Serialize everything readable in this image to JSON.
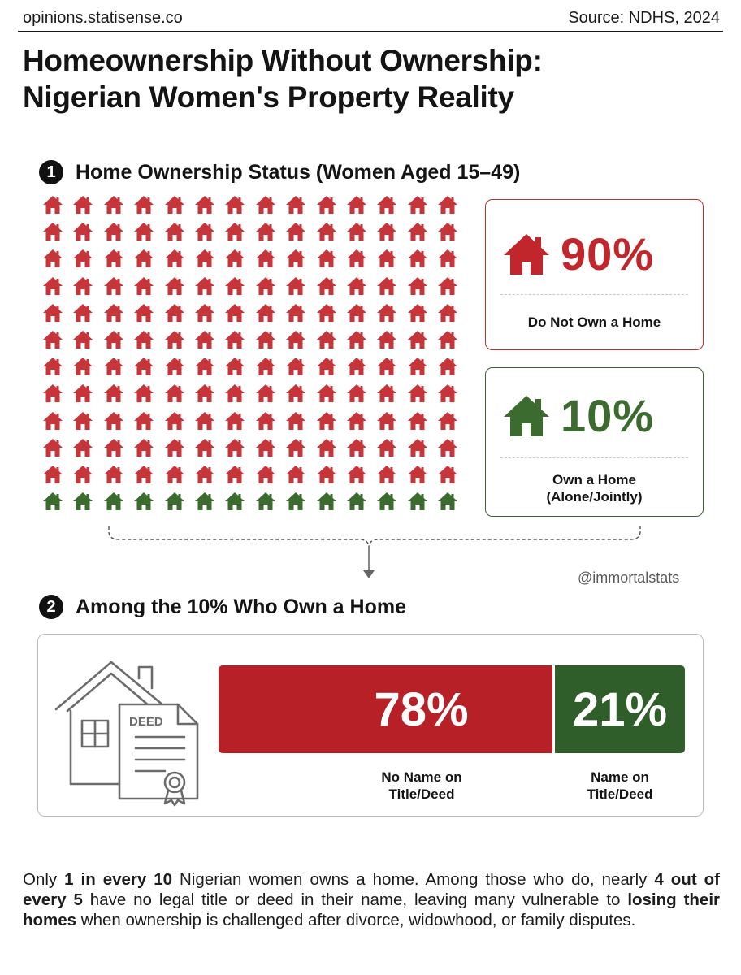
{
  "header": {
    "site": "opinions.statisense.co",
    "source": "Source: NDHS, 2024"
  },
  "title_line1": "Homeownership Without Ownership:",
  "title_line2": "Nigerian Women's Property Reality",
  "section1": {
    "number": "1",
    "heading": "Home Ownership Status (Women Aged 15–49)",
    "waffle": {
      "columns": 14,
      "rows": 12,
      "red_rows": 11,
      "green_rows": 1,
      "red_color": "#c6353a",
      "green_color": "#3b6b2e"
    },
    "not_own": {
      "value": "90%",
      "label": "Do Not Own a Home",
      "color": "#c0262c",
      "icon": "house-icon"
    },
    "own": {
      "value": "10%",
      "label": "Own a Home\n(Alone/Jointly)",
      "color": "#3b6b2e",
      "icon": "house-icon"
    }
  },
  "handle": "@immortalstats",
  "section2": {
    "number": "2",
    "heading": "Among the 10% Who Own a Home",
    "deed_label": "DEED",
    "no_name": {
      "value": "78%",
      "label": "No Name on\nTitle/Deed",
      "color": "#b62026"
    },
    "name": {
      "value": "21%",
      "label": "Name on\nTitle/Deed",
      "color": "#305e2a"
    }
  },
  "summary": {
    "t1": "Only ",
    "b1": "1 in every 10",
    "t2": " Nigerian women owns a home. Among those who do, nearly ",
    "b2": "4 out of every 5",
    "t3": " have no legal title or deed in their name, leaving many vulnerable to ",
    "b3": "losing their homes",
    "t4": " when ownership is challenged after divorce, widowhood, or family disputes."
  }
}
